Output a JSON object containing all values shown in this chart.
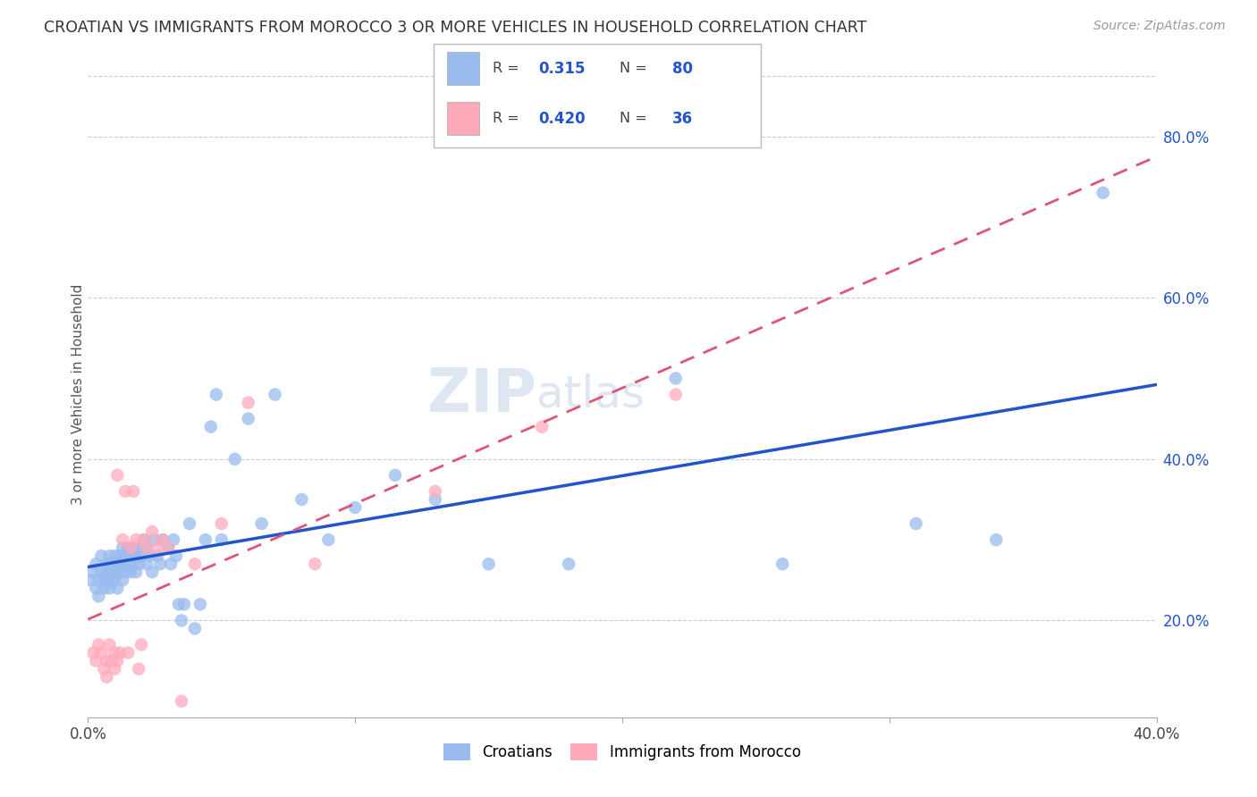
{
  "title": "CROATIAN VS IMMIGRANTS FROM MOROCCO 3 OR MORE VEHICLES IN HOUSEHOLD CORRELATION CHART",
  "source": "Source: ZipAtlas.com",
  "ylabel": "3 or more Vehicles in Household",
  "xlim": [
    0.0,
    0.4
  ],
  "ylim": [
    0.08,
    0.88
  ],
  "xtick_labels": [
    "0.0%",
    "",
    "",
    "",
    "40.0%"
  ],
  "xtick_vals": [
    0.0,
    0.1,
    0.2,
    0.3,
    0.4
  ],
  "ytick_labels": [
    "20.0%",
    "40.0%",
    "60.0%",
    "80.0%"
  ],
  "ytick_vals": [
    0.2,
    0.4,
    0.6,
    0.8
  ],
  "blue_R": 0.315,
  "blue_N": 80,
  "pink_R": 0.42,
  "pink_N": 36,
  "blue_dot_color": "#99bbee",
  "pink_dot_color": "#ffaabb",
  "blue_line_color": "#2255cc",
  "pink_line_color": "#dd5577",
  "watermark_zip": "ZIP",
  "watermark_atlas": "atlas",
  "legend_label_blue": "Croatians",
  "legend_label_pink": "Immigrants from Morocco",
  "blue_scatter_x": [
    0.001,
    0.002,
    0.003,
    0.003,
    0.004,
    0.004,
    0.005,
    0.005,
    0.006,
    0.006,
    0.007,
    0.007,
    0.007,
    0.008,
    0.008,
    0.008,
    0.009,
    0.009,
    0.01,
    0.01,
    0.01,
    0.011,
    0.011,
    0.012,
    0.012,
    0.013,
    0.013,
    0.013,
    0.014,
    0.014,
    0.015,
    0.015,
    0.016,
    0.016,
    0.017,
    0.017,
    0.018,
    0.018,
    0.019,
    0.019,
    0.02,
    0.021,
    0.022,
    0.022,
    0.023,
    0.024,
    0.025,
    0.026,
    0.027,
    0.028,
    0.03,
    0.031,
    0.032,
    0.033,
    0.034,
    0.035,
    0.036,
    0.038,
    0.04,
    0.042,
    0.044,
    0.046,
    0.048,
    0.05,
    0.055,
    0.06,
    0.065,
    0.07,
    0.08,
    0.09,
    0.1,
    0.115,
    0.13,
    0.15,
    0.18,
    0.22,
    0.26,
    0.31,
    0.34,
    0.38
  ],
  "blue_scatter_y": [
    0.25,
    0.26,
    0.24,
    0.27,
    0.25,
    0.23,
    0.26,
    0.28,
    0.25,
    0.24,
    0.26,
    0.27,
    0.25,
    0.28,
    0.24,
    0.26,
    0.25,
    0.27,
    0.25,
    0.26,
    0.28,
    0.24,
    0.27,
    0.26,
    0.28,
    0.25,
    0.27,
    0.29,
    0.26,
    0.28,
    0.27,
    0.29,
    0.26,
    0.28,
    0.27,
    0.29,
    0.26,
    0.28,
    0.27,
    0.29,
    0.28,
    0.3,
    0.29,
    0.27,
    0.28,
    0.26,
    0.3,
    0.28,
    0.27,
    0.3,
    0.29,
    0.27,
    0.3,
    0.28,
    0.22,
    0.2,
    0.22,
    0.32,
    0.19,
    0.22,
    0.3,
    0.44,
    0.48,
    0.3,
    0.4,
    0.45,
    0.32,
    0.48,
    0.35,
    0.3,
    0.34,
    0.38,
    0.35,
    0.27,
    0.27,
    0.5,
    0.27,
    0.32,
    0.3,
    0.73
  ],
  "pink_scatter_x": [
    0.002,
    0.003,
    0.004,
    0.005,
    0.006,
    0.007,
    0.007,
    0.008,
    0.009,
    0.01,
    0.01,
    0.011,
    0.011,
    0.012,
    0.013,
    0.014,
    0.015,
    0.016,
    0.017,
    0.018,
    0.019,
    0.02,
    0.021,
    0.022,
    0.024,
    0.026,
    0.028,
    0.03,
    0.035,
    0.04,
    0.05,
    0.06,
    0.085,
    0.13,
    0.17,
    0.22
  ],
  "pink_scatter_y": [
    0.16,
    0.15,
    0.17,
    0.16,
    0.14,
    0.15,
    0.13,
    0.17,
    0.15,
    0.16,
    0.14,
    0.15,
    0.38,
    0.16,
    0.3,
    0.36,
    0.16,
    0.29,
    0.36,
    0.3,
    0.14,
    0.17,
    0.3,
    0.29,
    0.31,
    0.29,
    0.3,
    0.29,
    0.1,
    0.27,
    0.32,
    0.47,
    0.27,
    0.36,
    0.44,
    0.48
  ]
}
